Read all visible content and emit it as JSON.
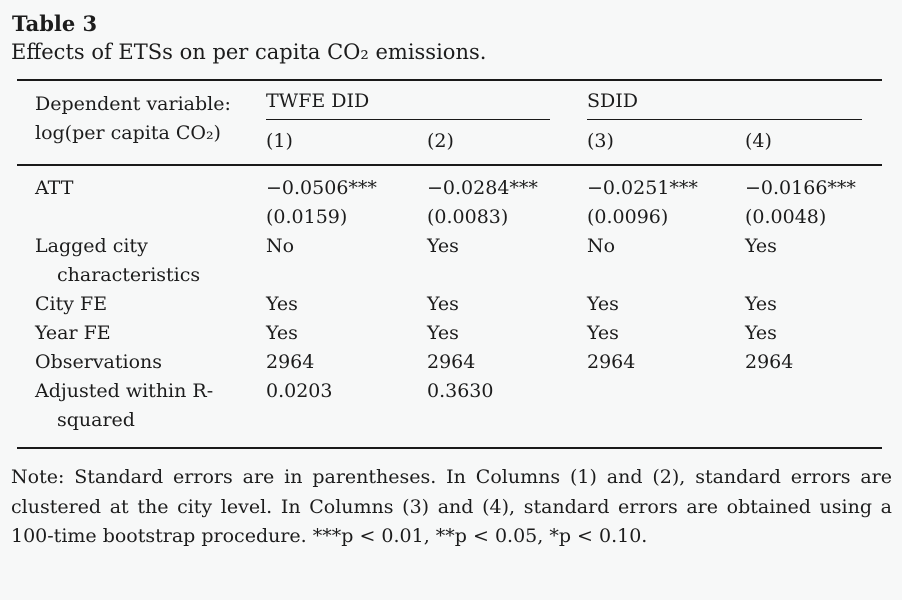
{
  "colors": {
    "background": "#f7f8f8",
    "text": "#1c1c1c",
    "rule": "#1a1a1a"
  },
  "title": "Table 3",
  "subtitle": "Effects of ETSs on per capita CO₂ emissions.",
  "header": {
    "dep_var_line1": "Dependent variable:",
    "dep_var_line2": "log(per capita CO₂)",
    "groups": [
      {
        "label": "TWFE DID",
        "columns": [
          "(1)",
          "(2)"
        ]
      },
      {
        "label": "SDID",
        "columns": [
          "(3)",
          "(4)"
        ]
      }
    ]
  },
  "rows": [
    {
      "label": "ATT",
      "values": [
        "−0.0506***",
        "−0.0284***",
        "−0.0251***",
        "−0.0166***"
      ],
      "se": [
        "(0.0159)",
        "(0.0083)",
        "(0.0096)",
        "(0.0048)"
      ]
    },
    {
      "label": "Lagged city",
      "label2": "characteristics",
      "values": [
        "No",
        "Yes",
        "No",
        "Yes"
      ]
    },
    {
      "label": "City FE",
      "values": [
        "Yes",
        "Yes",
        "Yes",
        "Yes"
      ]
    },
    {
      "label": "Year FE",
      "values": [
        "Yes",
        "Yes",
        "Yes",
        "Yes"
      ]
    },
    {
      "label": "Observations",
      "values": [
        "2964",
        "2964",
        "2964",
        "2964"
      ]
    },
    {
      "label": "Adjusted within R-",
      "label2": "squared",
      "values": [
        "0.0203",
        "0.3630",
        "",
        ""
      ]
    }
  ],
  "note": "Note: Standard errors are in parentheses. In Columns (1) and (2), standard errors are clustered at the city level. In Columns (3) and (4), standard errors are obtained using a 100-time bootstrap procedure. ***p < 0.01, **p < 0.05, *p < 0.10."
}
